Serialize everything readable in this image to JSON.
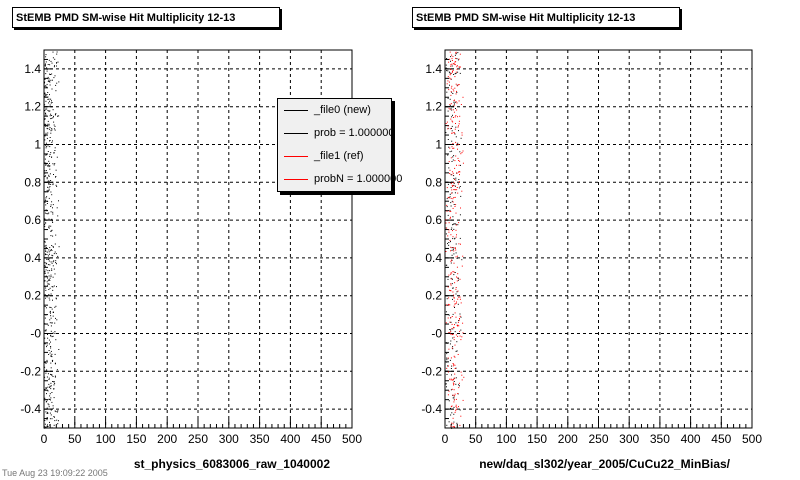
{
  "chart_data": [
    {
      "type": "scatter",
      "title": "StEMB PMD SM-wise Hit Multiplicity 12-13",
      "xlabel": "st_physics_6083006_raw_1040002",
      "ylabel": "",
      "xlim": [
        0,
        500
      ],
      "ylim": [
        -0.5,
        1.5
      ],
      "x_ticks": [
        "0",
        "50",
        "100",
        "150",
        "200",
        "250",
        "300",
        "350",
        "400",
        "450",
        "500"
      ],
      "y_ticks": [
        "-0.4",
        "-0.2",
        "-0",
        "0.2",
        "0.4",
        "0.6",
        "0.8",
        "1",
        "1.2",
        "1.4"
      ],
      "grid": true,
      "legend_position": "top-right",
      "legend": [
        "_file0 (new)",
        "prob = 1.000000",
        "_file1 (ref)",
        "probN = 1.000000"
      ],
      "series": [
        {
          "name": "_file0 (new)",
          "color": "#000000",
          "x_range": [
            0,
            30
          ],
          "x_center": 8,
          "y_range": [
            -0.5,
            1.5
          ],
          "points_per_unit_y": 260
        }
      ]
    },
    {
      "type": "scatter",
      "title": "StEMB PMD SM-wise Hit Multiplicity 12-13",
      "xlabel": "new/daq_sl302/year_2005/CuCu22_MinBias/",
      "ylabel": "",
      "xlim": [
        0,
        500
      ],
      "ylim": [
        -0.5,
        1.5
      ],
      "x_ticks": [
        "0",
        "50",
        "100",
        "150",
        "200",
        "250",
        "300",
        "350",
        "400",
        "450",
        "500"
      ],
      "y_ticks": [
        "-0.4",
        "-0.2",
        "-0",
        "0.2",
        "0.4",
        "0.6",
        "0.8",
        "1",
        "1.2",
        "1.4"
      ],
      "grid": true,
      "series": [
        {
          "name": "_file0 (new)",
          "color": "#000000",
          "x_range": [
            0,
            30
          ],
          "x_center": 12,
          "y_range": [
            -0.5,
            1.5
          ],
          "points_per_unit_y": 110
        },
        {
          "name": "_file1 (ref)",
          "color": "#ff0000",
          "x_range": [
            0,
            30
          ],
          "x_center": 14,
          "y_range": [
            -0.5,
            1.5
          ],
          "points_per_unit_y": 170
        }
      ]
    }
  ],
  "footer": "Tue Aug 23 19:09:22 2005"
}
